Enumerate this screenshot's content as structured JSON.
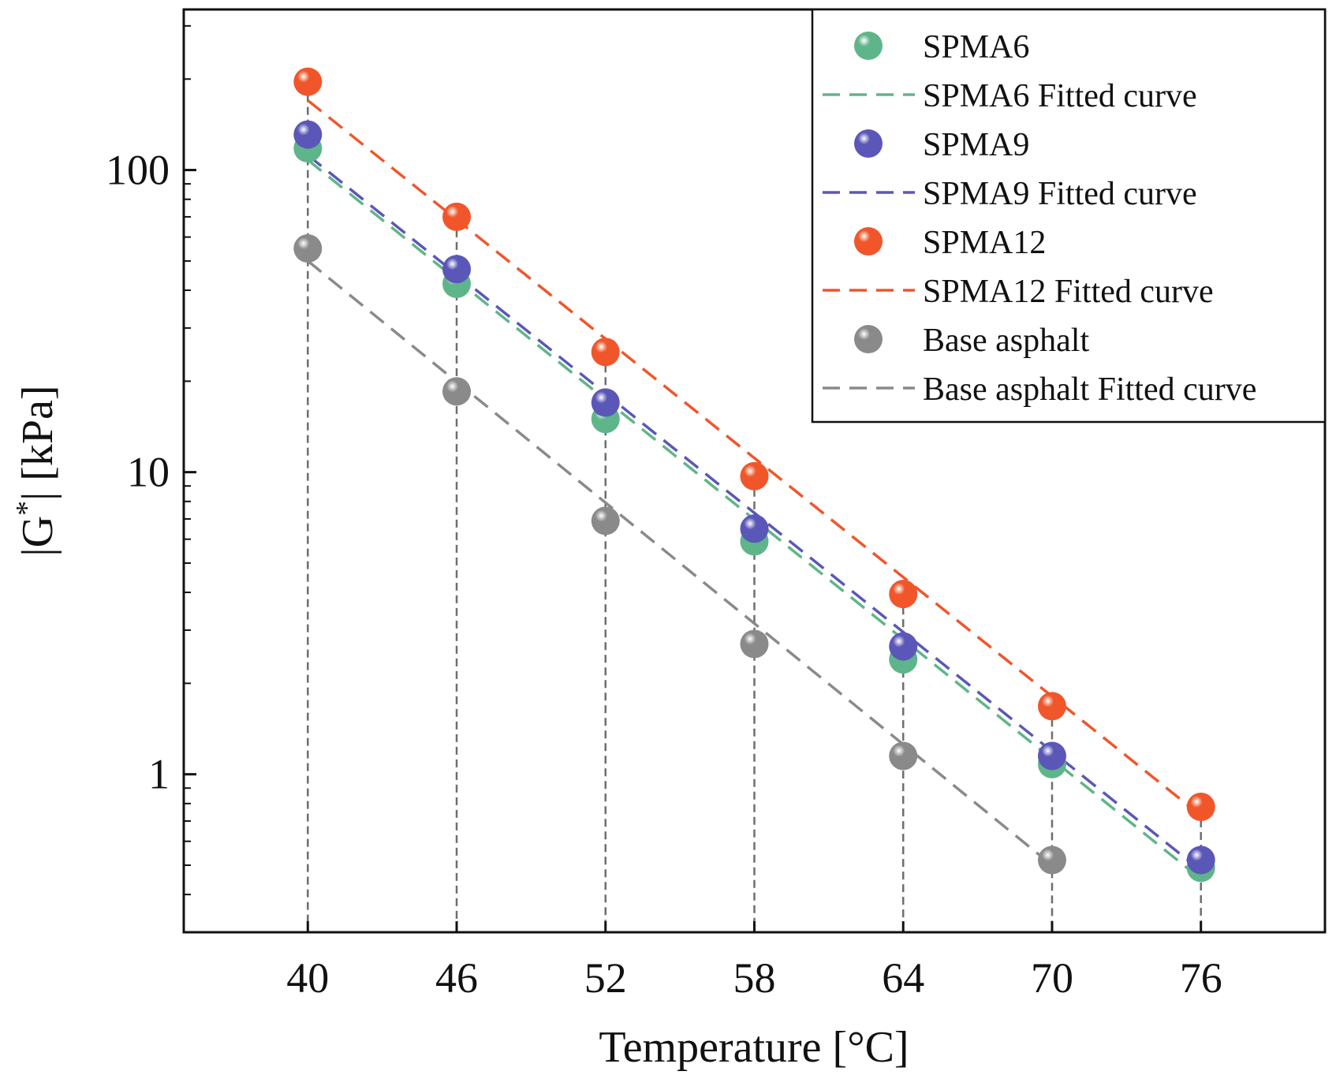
{
  "chart_data": {
    "type": "scatter",
    "scale_y": "log",
    "x": [
      40,
      46,
      52,
      58,
      64,
      70,
      76
    ],
    "xticks": [
      "40",
      "46",
      "52",
      "58",
      "64",
      "70",
      "76"
    ],
    "yticks": [
      {
        "value": 1,
        "label": "1"
      },
      {
        "value": 10,
        "label": "10"
      },
      {
        "value": 100,
        "label": "100"
      }
    ],
    "xlim": [
      35,
      81
    ],
    "ylim": [
      0.3,
      340
    ],
    "xlabel": "Temperature [°C]",
    "ylabel": {
      "prefix": "|G",
      "sup": "*",
      "suffix": "| [kPa]"
    },
    "series": [
      {
        "name": "SPMA6",
        "fit_name": "SPMA6 Fitted curve",
        "color": "#5fb58a",
        "values": [
          118,
          42,
          15,
          5.9,
          2.4,
          1.08,
          0.49
        ],
        "fit": [
          108,
          0.45
        ]
      },
      {
        "name": "SPMA9",
        "fit_name": "SPMA9 Fitted curve",
        "color": "#5b57b8",
        "values": [
          131,
          47,
          17,
          6.5,
          2.65,
          1.15,
          0.52
        ],
        "fit": [
          112,
          0.48
        ]
      },
      {
        "name": "SPMA12",
        "fit_name": "SPMA12 Fitted curve",
        "color": "#f0562a",
        "values": [
          196,
          70,
          25,
          9.7,
          3.95,
          1.68,
          0.78
        ],
        "fit": [
          170,
          0.73
        ]
      },
      {
        "name": "Base asphalt",
        "fit_name": "Base asphalt Fitted curve",
        "color": "#8a8a8a",
        "values": [
          55,
          18.5,
          6.9,
          2.7,
          1.15,
          0.52,
          null
        ],
        "fit": [
          50,
          0.5
        ]
      }
    ],
    "legend_position": "top-right",
    "grid": false
  }
}
